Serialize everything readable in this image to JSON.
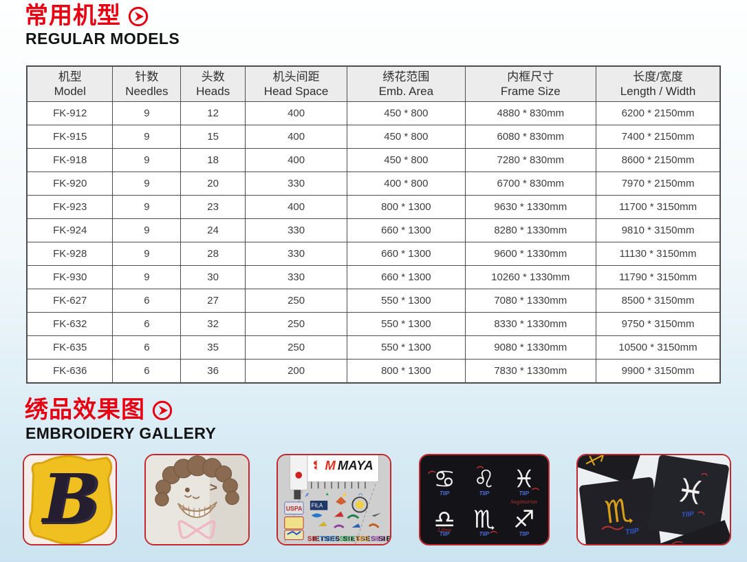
{
  "colors": {
    "accent_red": "#e60012",
    "card_border": "#c1272d",
    "table_header_bg": "#ececec",
    "table_border": "#4d4d4d",
    "table_text": "#3d3d3d",
    "page_bg_bottom": "#cbe3f0"
  },
  "sections": {
    "models": {
      "title_zh": "常用机型",
      "title_en": "REGULAR MODELS"
    },
    "gallery": {
      "title_zh": "绣品效果图",
      "title_en": "EMBROIDERY GALLERY"
    }
  },
  "table": {
    "columns": [
      {
        "zh": "机型",
        "en": "Model"
      },
      {
        "zh": "针数",
        "en": "Needles"
      },
      {
        "zh": "头数",
        "en": "Heads"
      },
      {
        "zh": "机头间距",
        "en": "Head Space"
      },
      {
        "zh": "绣花范围",
        "en": "Emb. Area"
      },
      {
        "zh": "内框尺寸",
        "en": "Frame Size"
      },
      {
        "zh": "长度/宽度",
        "en": "Length / Width"
      }
    ],
    "rows": [
      [
        "FK-912",
        "9",
        "12",
        "400",
        "450 * 800",
        "4880 * 830mm",
        "6200 * 2150mm"
      ],
      [
        "FK-915",
        "9",
        "15",
        "400",
        "450 * 800",
        "6080 * 830mm",
        "7400 * 2150mm"
      ],
      [
        "FK-918",
        "9",
        "18",
        "400",
        "450 * 800",
        "7280 * 830mm",
        "8600 * 2150mm"
      ],
      [
        "FK-920",
        "9",
        "20",
        "330",
        "400 * 800",
        "6700 * 830mm",
        "7970 * 2150mm"
      ],
      [
        "FK-923",
        "9",
        "23",
        "400",
        "800 * 1300",
        "9630 * 1330mm",
        "11700 * 3150mm"
      ],
      [
        "FK-924",
        "9",
        "24",
        "330",
        "660 * 1300",
        "8280 * 1330mm",
        "9810 * 3150mm"
      ],
      [
        "FK-928",
        "9",
        "28",
        "330",
        "660 * 1300",
        "9600 * 1330mm",
        "11130 * 3150mm"
      ],
      [
        "FK-930",
        "9",
        "30",
        "330",
        "660 * 1300",
        "10260 * 1330mm",
        "11790 * 3150mm"
      ],
      [
        "FK-627",
        "6",
        "27",
        "250",
        "550 * 1300",
        "7080 * 1330mm",
        "8500 * 3150mm"
      ],
      [
        "FK-632",
        "6",
        "32",
        "250",
        "550 * 1300",
        "8330 * 1330mm",
        "9750 * 3150mm"
      ],
      [
        "FK-635",
        "6",
        "35",
        "250",
        "550 * 1300",
        "9080 * 1330mm",
        "10500 * 3150mm"
      ],
      [
        "FK-636",
        "6",
        "36",
        "200",
        "800 * 1300",
        "7830 * 1330mm",
        "9900 * 3150mm"
      ]
    ]
  },
  "gallery": {
    "items": [
      {
        "name": "gothic-letter-b-patch",
        "desc": "3D gold patch with dark gothic letter B"
      },
      {
        "name": "chenille-face",
        "desc": "Chenille embroidery of winking face with fluffy brown hair and pink bowtie"
      },
      {
        "name": "maya-machine-logos",
        "desc": "MAYA embroidery machine head stitching colorful brand logo samples",
        "brand_label": "MAYA",
        "bottom_label": "SIETSES SIETSES SIETSES"
      },
      {
        "name": "zodiac-black-panel",
        "desc": "Six white zodiac motifs embroidered on black fabric",
        "tiip_label": "TIIP",
        "script_label_1": "Libra",
        "script_label_2": "Sagittarius"
      },
      {
        "name": "zodiac-gold-white-pieces",
        "desc": "Black fabric pieces with gold scorpion and white motif embroidery",
        "tiip_label": "TIIP"
      }
    ],
    "zodiac_glyphs": [
      "♋",
      "♌",
      "♓",
      "♎",
      "♏",
      "♐"
    ]
  }
}
